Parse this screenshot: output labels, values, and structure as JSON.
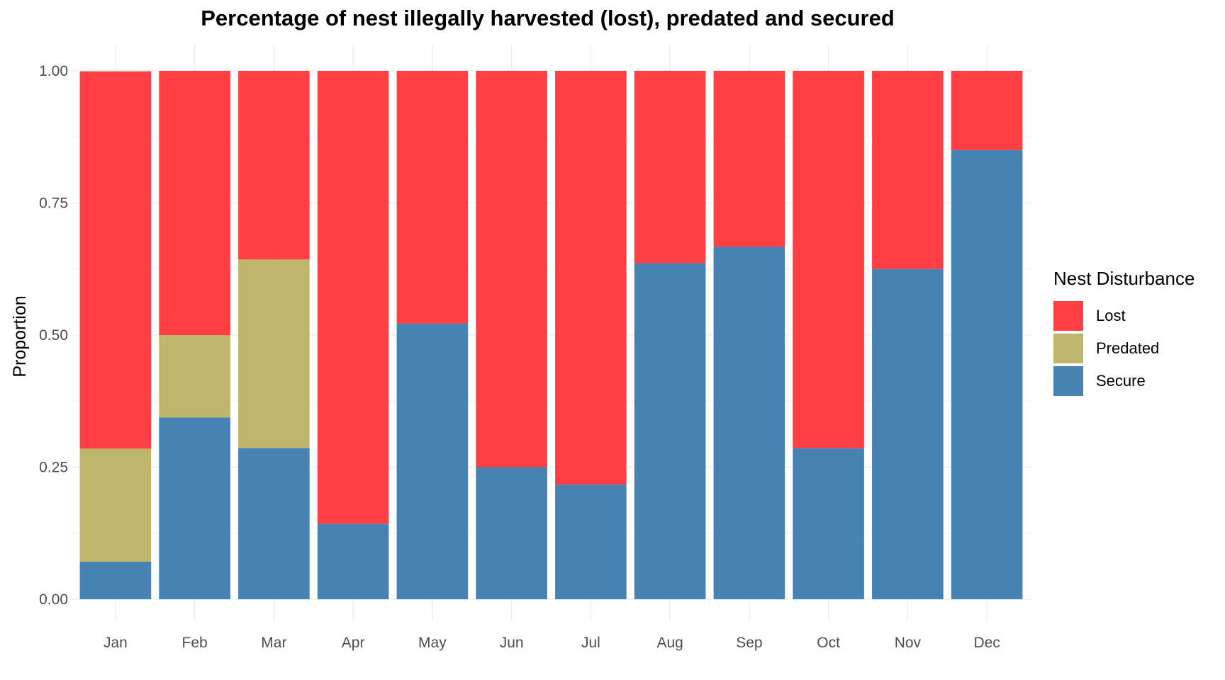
{
  "chart_data": {
    "type": "bar",
    "stacked": true,
    "title": "Percentage of nest illegally harvested (lost), predated and secured",
    "xlabel": "",
    "ylabel": "Proportion",
    "ylim": [
      0,
      1
    ],
    "yticks": [
      "0.00",
      "0.25",
      "0.50",
      "0.75",
      "1.00"
    ],
    "categories": [
      "Jan",
      "Feb",
      "Mar",
      "Apr",
      "May",
      "Jun",
      "Jul",
      "Aug",
      "Sep",
      "Oct",
      "Nov",
      "Dec"
    ],
    "legend_title": "Nest Disturbance",
    "legend_position": "right",
    "grid": true,
    "series": [
      {
        "name": "Lost",
        "color": "#FF3F43",
        "values": [
          0.714,
          0.5,
          0.357,
          0.857,
          0.478,
          0.75,
          0.783,
          0.364,
          0.333,
          0.714,
          0.375,
          0.15
        ]
      },
      {
        "name": "Predated",
        "color": "#BEB66B",
        "values": [
          0.214,
          0.156,
          0.357,
          0,
          0,
          0,
          0,
          0,
          0,
          0,
          0,
          0
        ]
      },
      {
        "name": "Secure",
        "color": "#4682B4",
        "values": [
          0.071,
          0.344,
          0.286,
          0.143,
          0.522,
          0.25,
          0.217,
          0.636,
          0.667,
          0.286,
          0.625,
          0.85
        ]
      }
    ]
  }
}
